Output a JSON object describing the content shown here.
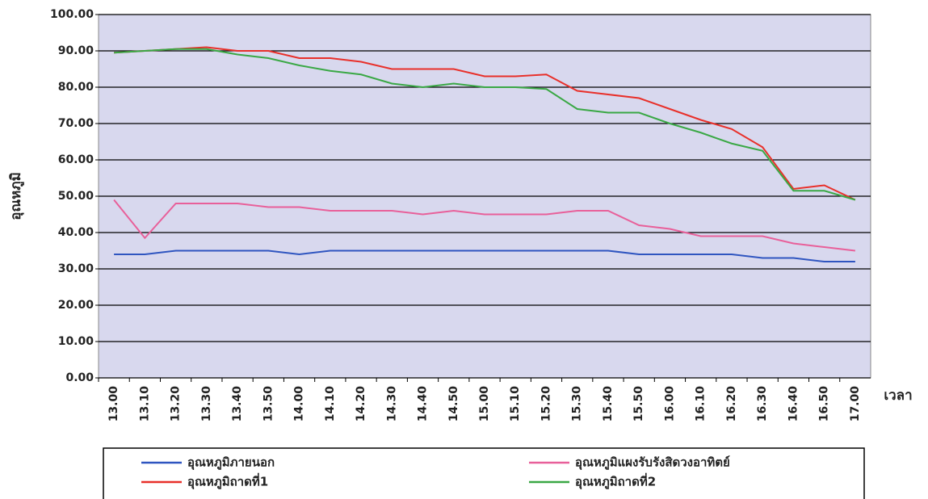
{
  "chart_data": {
    "type": "line",
    "y_label": "อุณหภูมิ",
    "x_label": "เวลา",
    "categories": [
      "13.00",
      "13.10",
      "13.20",
      "13.30",
      "13.40",
      "13.50",
      "14.00",
      "14.10",
      "14.20",
      "14.30",
      "14.40",
      "14.50",
      "15.00",
      "15.10",
      "15.20",
      "15.30",
      "15.40",
      "15.50",
      "16.00",
      "16.10",
      "16.20",
      "16.30",
      "16.40",
      "16.50",
      "17.00"
    ],
    "series": [
      {
        "name": "อุณหภูมิภายนอก",
        "color": "#2f55c0",
        "values": [
          34,
          34,
          35,
          35,
          35,
          35,
          34,
          35,
          35,
          35,
          35,
          35,
          35,
          35,
          35,
          35,
          35,
          34,
          34,
          34,
          34,
          33,
          33,
          32,
          32
        ]
      },
      {
        "name": "อุณหภูมิแผงรับรังสิดวงอาทิตย์",
        "color": "#e8609a",
        "values": [
          49,
          38.5,
          48,
          48,
          48,
          47,
          47,
          46,
          46,
          46,
          45,
          46,
          45,
          45,
          45,
          46,
          46,
          42,
          41,
          39,
          39,
          39,
          37,
          36,
          35
        ]
      },
      {
        "name": "อุณหภูมิถาดที่1",
        "color": "#e8302a",
        "values": [
          89.5,
          90,
          90.5,
          91,
          90,
          90,
          88,
          88,
          87,
          85,
          85,
          85,
          83,
          83,
          83.5,
          79,
          78,
          77,
          74,
          71,
          68.5,
          63.5,
          52,
          53,
          49
        ]
      },
      {
        "name": "อุณหภูมิถาดที่2",
        "color": "#3aa845",
        "values": [
          89.5,
          90,
          90.5,
          90.5,
          89,
          88,
          86,
          84.5,
          83.5,
          81,
          80,
          81,
          80,
          80,
          79.5,
          74,
          73,
          73,
          70,
          67.5,
          64.5,
          62.5,
          51.5,
          51.5,
          49
        ]
      }
    ],
    "ylim": [
      0,
      100
    ],
    "yticks": [
      {
        "value": 0,
        "label": "0.00"
      },
      {
        "value": 10,
        "label": "10.00"
      },
      {
        "value": 20,
        "label": "20.00"
      },
      {
        "value": 30,
        "label": "30.00"
      },
      {
        "value": 40,
        "label": "40.00"
      },
      {
        "value": 50,
        "label": "50.00"
      },
      {
        "value": 60,
        "label": "60.00"
      },
      {
        "value": 70,
        "label": "70.00"
      },
      {
        "value": 80,
        "label": "80.00"
      },
      {
        "value": 90,
        "label": "90.00"
      },
      {
        "value": 100,
        "label": "100.00"
      }
    ],
    "grid": true
  }
}
